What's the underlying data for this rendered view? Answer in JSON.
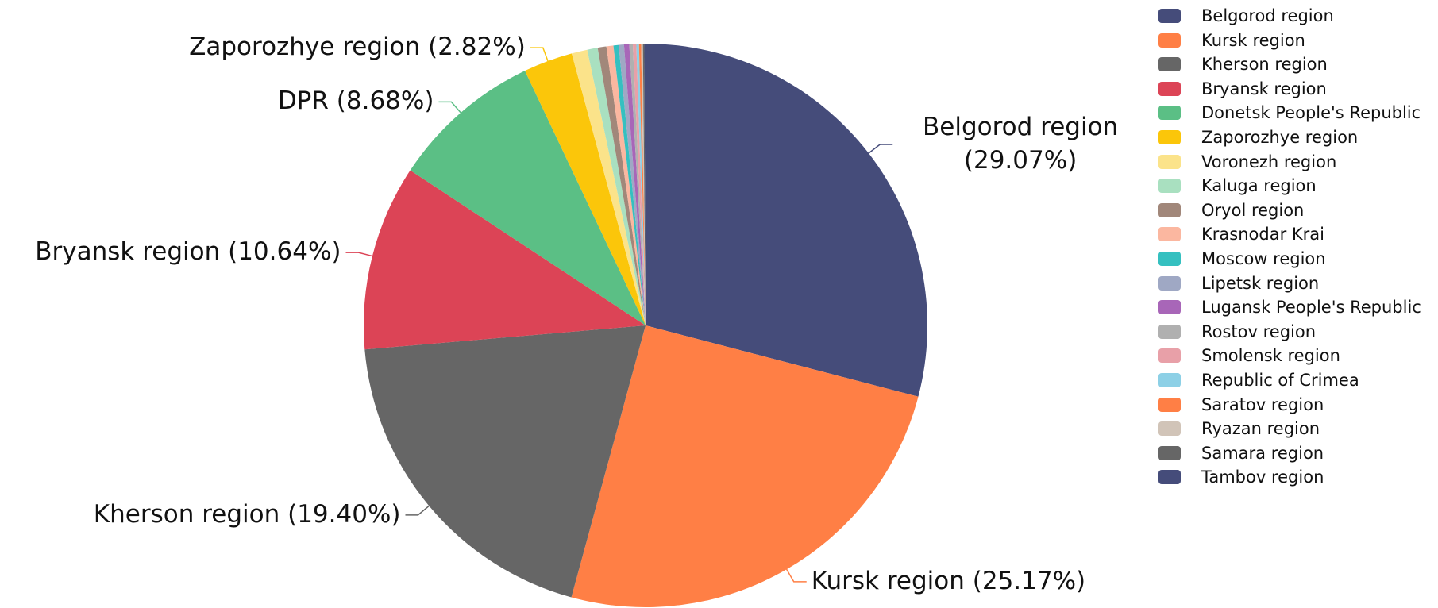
{
  "chart_data": {
    "type": "pie",
    "categories": [
      "Belgorod region",
      "Kursk region",
      "Kherson region",
      "Bryansk region",
      "Donetsk People's Republic",
      "Zaporozhye region",
      "Voronezh region",
      "Kaluga region",
      "Oryol region",
      "Krasnodar Krai",
      "Moscow region",
      "Lipetsk region",
      "Lugansk People's Republic",
      "Rostov region",
      "Smolensk region",
      "Republic of Crimea",
      "Saratov region",
      "Ryazan region",
      "Samara region",
      "Tambov region"
    ],
    "values": [
      29.07,
      25.17,
      19.4,
      10.64,
      8.68,
      2.82,
      0.9,
      0.6,
      0.5,
      0.4,
      0.3,
      0.3,
      0.3,
      0.2,
      0.2,
      0.15,
      0.12,
      0.1,
      0.08,
      0.07
    ],
    "value_labels": [
      "Belgorod region (29.07%)",
      "Kursk region (25.17%)",
      "Kherson region (19.40%)",
      "Bryansk region (10.64%)",
      "DPR (8.68%)",
      "Zaporozhye region (2.82%)",
      null,
      null,
      null,
      null,
      null,
      null,
      null,
      null,
      null,
      null,
      null,
      null,
      null,
      null
    ],
    "colors": [
      "#454c7a",
      "#ff7f45",
      "#666666",
      "#dc4456",
      "#5bbf85",
      "#fbc60a",
      "#fbe38a",
      "#a9e0c0",
      "#a1877a",
      "#fbb7a0",
      "#35c0c0",
      "#9fa8c4",
      "#a866b8",
      "#b0b0b0",
      "#e8a0a8",
      "#8dd0e6",
      "#ff7f45",
      "#d1c4b8",
      "#666666",
      "#454c7a"
    ],
    "legend": "right"
  }
}
